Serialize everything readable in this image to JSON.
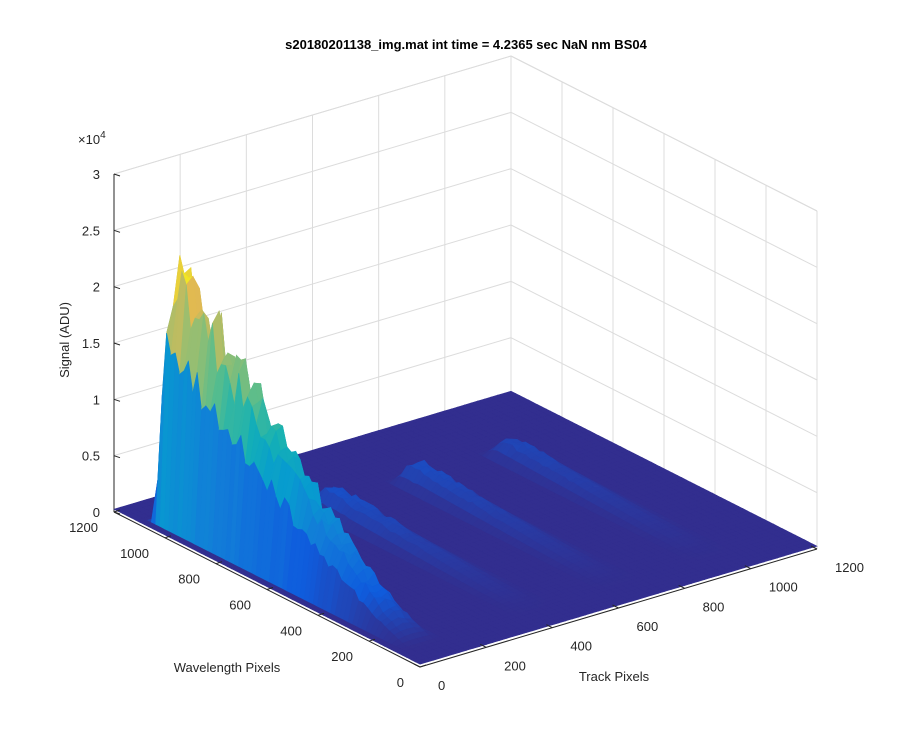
{
  "chart_data": {
    "type": "surface3d",
    "title": "s20180201138_img.mat int time = 4.2365 sec  NaN nm BS04",
    "xlabel": "Track Pixels",
    "ylabel": "Wavelength Pixels",
    "zlabel": "Signal (ADU)",
    "z_exponent": "×10",
    "z_exponent_power": "4",
    "xlim": [
      0,
      1200
    ],
    "ylim": [
      0,
      1200
    ],
    "zlim": [
      0,
      30000
    ],
    "x_ticks": [
      "0",
      "200",
      "400",
      "600",
      "800",
      "1000",
      "1200"
    ],
    "y_ticks": [
      "0",
      "200",
      "400",
      "600",
      "800",
      "1000",
      "1200"
    ],
    "z_ticks": [
      "0",
      "0.5",
      "1",
      "1.5",
      "2",
      "2.5",
      "3"
    ],
    "grid": true,
    "colormap": "parula",
    "peaks": [
      {
        "track_center": 80,
        "track_width": 55,
        "wavelength_start": 100,
        "wavelength_peak": 1050,
        "max_signal": 23500
      },
      {
        "track_center": 420,
        "track_width": 45,
        "wavelength_start": 100,
        "wavelength_peak": 900,
        "max_signal": 2000
      },
      {
        "track_center": 680,
        "track_width": 45,
        "wavelength_start": 100,
        "wavelength_peak": 900,
        "max_signal": 1800
      },
      {
        "track_center": 960,
        "track_width": 45,
        "wavelength_start": 100,
        "wavelength_peak": 900,
        "max_signal": 1500
      }
    ]
  }
}
